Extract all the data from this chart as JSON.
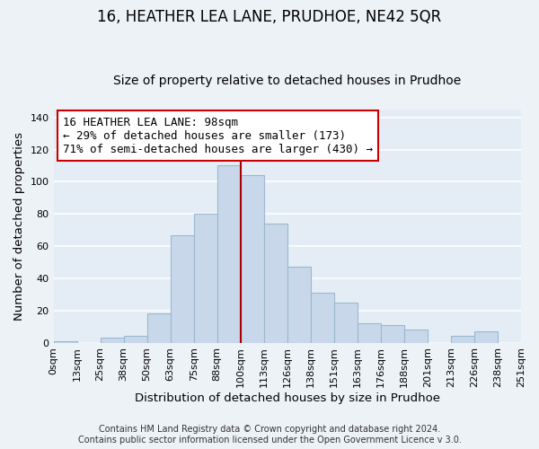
{
  "title": "16, HEATHER LEA LANE, PRUDHOE, NE42 5QR",
  "subtitle": "Size of property relative to detached houses in Prudhoe",
  "xlabel": "Distribution of detached houses by size in Prudhoe",
  "ylabel": "Number of detached properties",
  "footer_line1": "Contains HM Land Registry data © Crown copyright and database right 2024.",
  "footer_line2": "Contains public sector information licensed under the Open Government Licence v 3.0.",
  "bar_labels": [
    "0sqm",
    "13sqm",
    "25sqm",
    "38sqm",
    "50sqm",
    "63sqm",
    "75sqm",
    "88sqm",
    "100sqm",
    "113sqm",
    "126sqm",
    "138sqm",
    "151sqm",
    "163sqm",
    "176sqm",
    "188sqm",
    "201sqm",
    "213sqm",
    "226sqm",
    "238sqm",
    "251sqm"
  ],
  "bar_values": [
    1,
    0,
    3,
    4,
    18,
    67,
    80,
    110,
    104,
    74,
    47,
    31,
    25,
    12,
    11,
    8,
    0,
    4,
    7,
    0
  ],
  "bar_color": "#c8d8ea",
  "bar_edge_color": "#9ab8d0",
  "highlight_x_label": "100sqm",
  "highlight_line_color": "#aa0000",
  "annotation_title": "16 HEATHER LEA LANE: 98sqm",
  "annotation_line1": "← 29% of detached houses are smaller (173)",
  "annotation_line2": "71% of semi-detached houses are larger (430) →",
  "annotation_box_edge_color": "#cc0000",
  "annotation_box_face_color": "#ffffff",
  "ylim": [
    0,
    145
  ],
  "background_color": "#edf2f7",
  "plot_background_color": "#e4edf5",
  "grid_color": "#ffffff",
  "title_fontsize": 12,
  "subtitle_fontsize": 10,
  "axis_label_fontsize": 9.5,
  "tick_fontsize": 8,
  "annotation_fontsize": 9,
  "footer_fontsize": 7
}
